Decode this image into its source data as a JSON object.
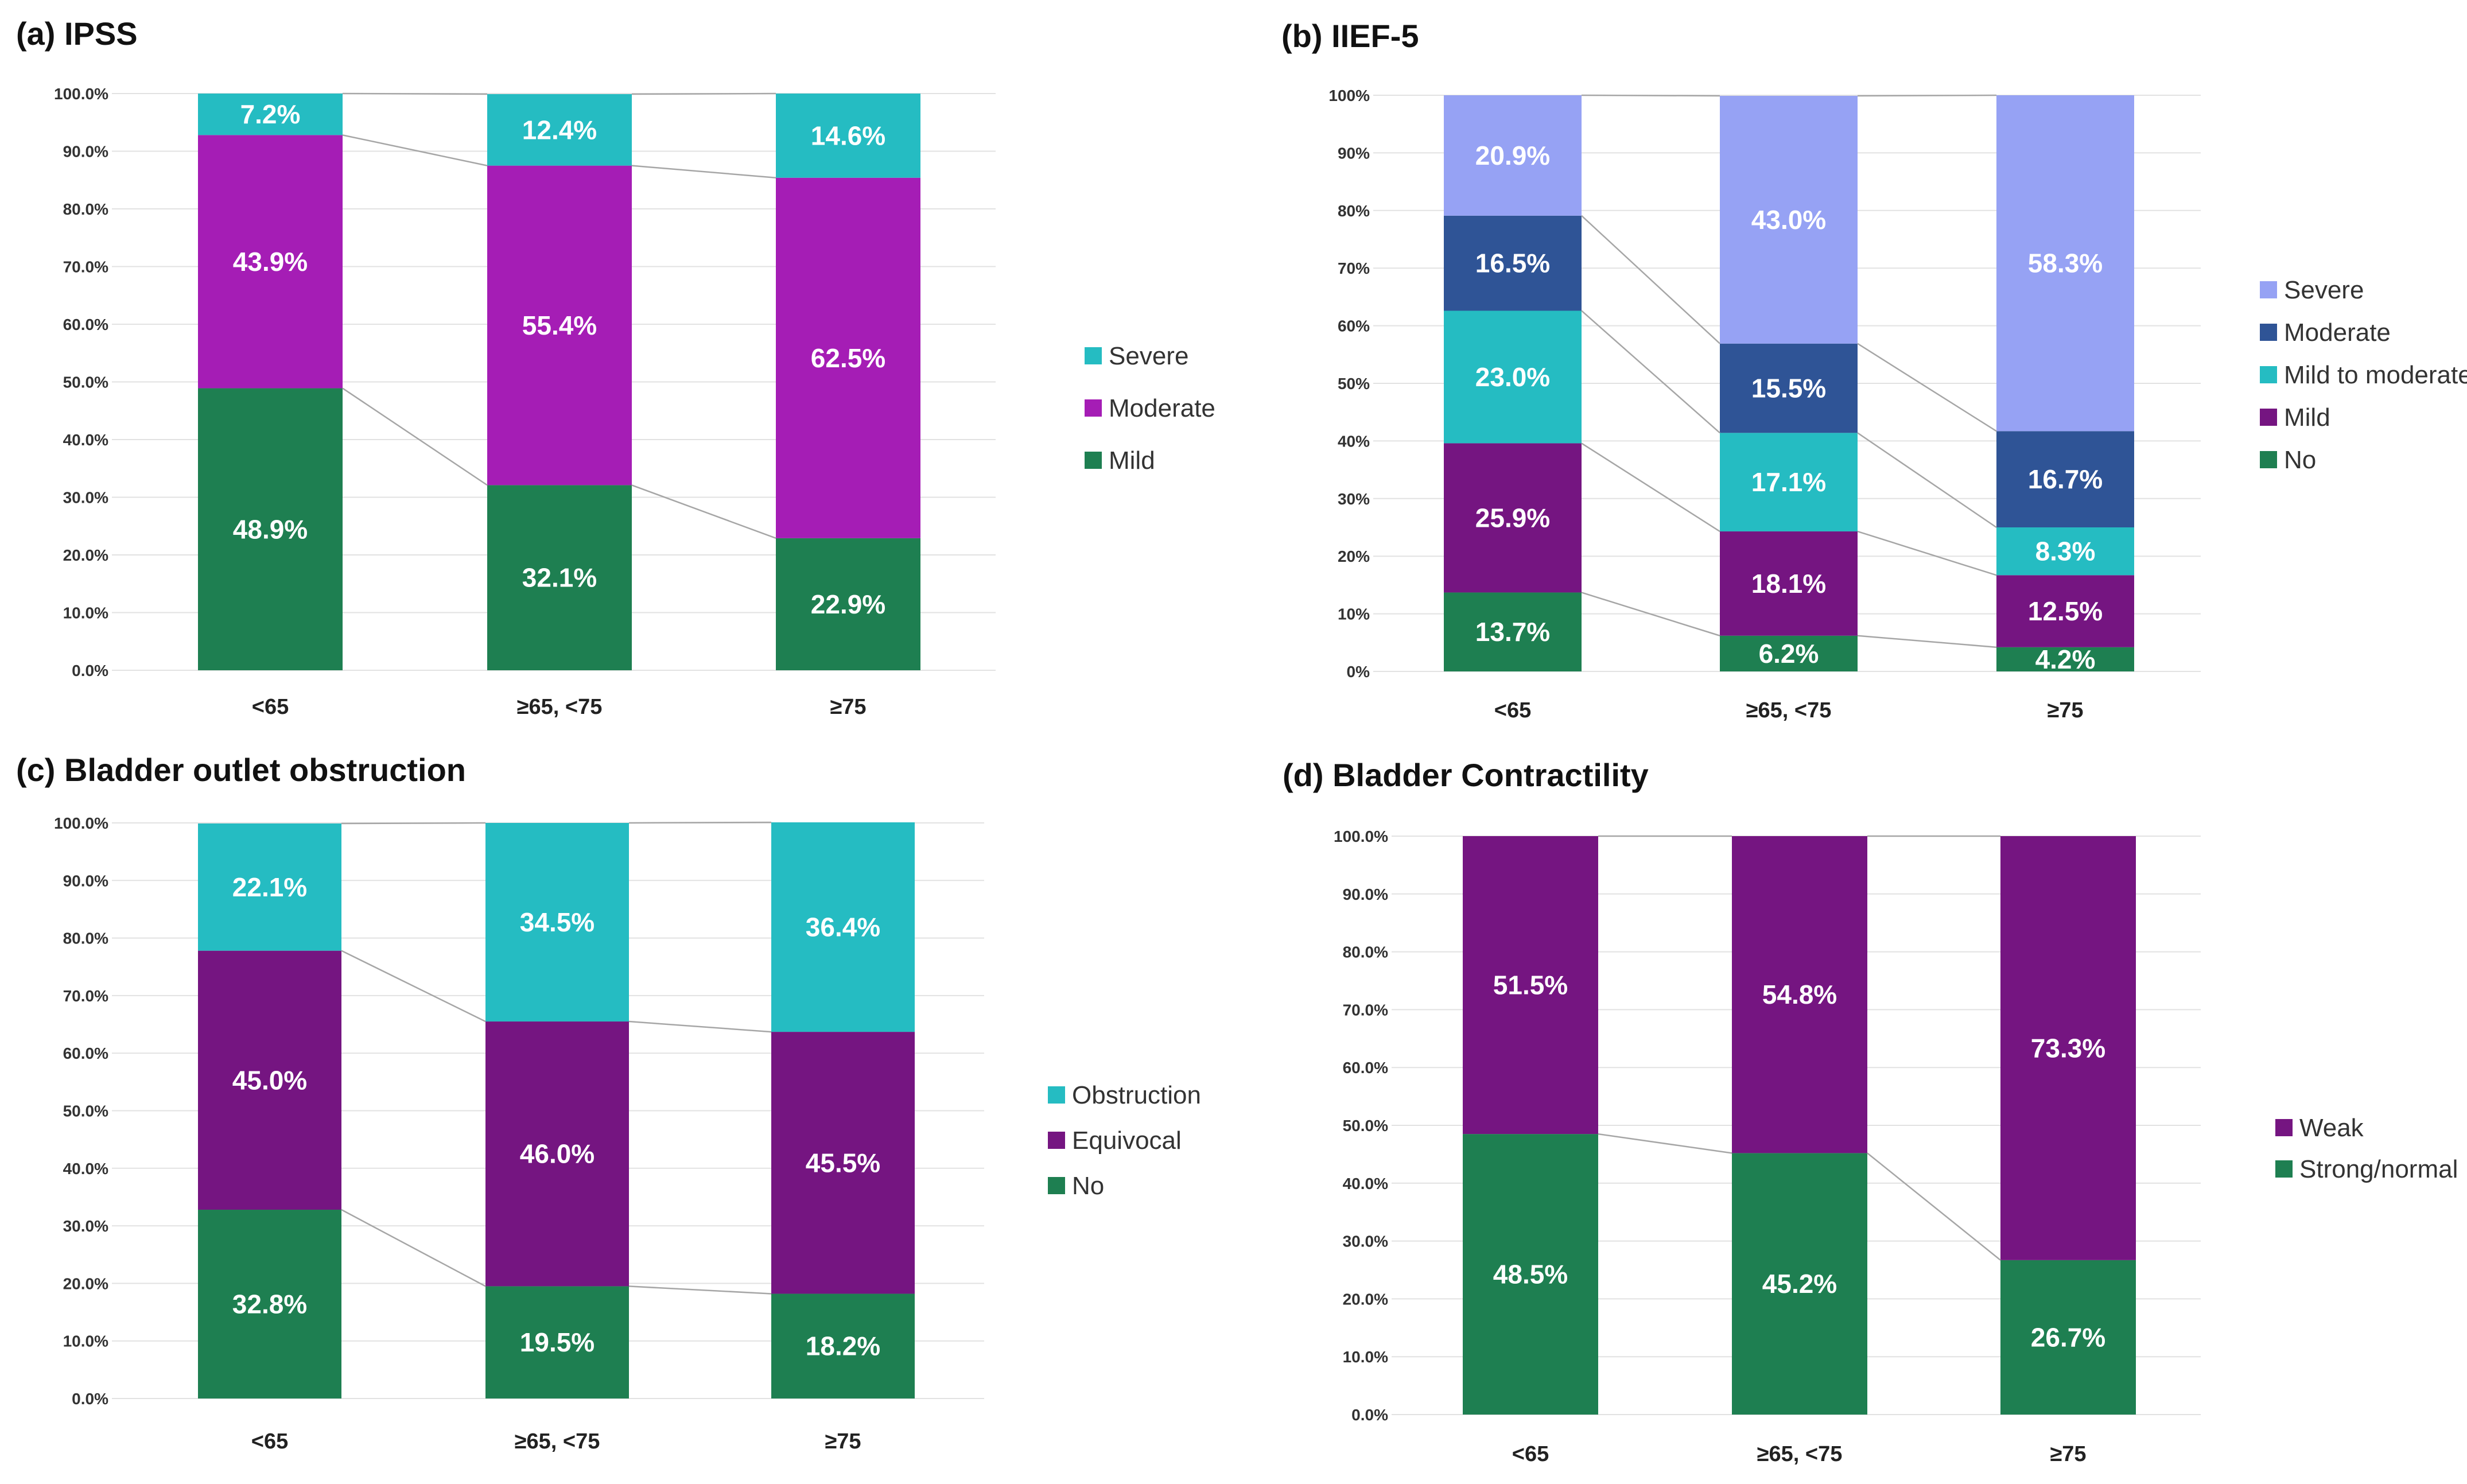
{
  "chart_data": [
    {
      "type": "bar",
      "stacked": true,
      "title": "(a) IPSS",
      "categories": [
        "<65",
        "≥65, <75",
        "≥75"
      ],
      "yticks": [
        "0.0%",
        "10.0%",
        "20.0%",
        "30.0%",
        "40.0%",
        "50.0%",
        "60.0%",
        "70.0%",
        "80.0%",
        "90.0%",
        "100.0%"
      ],
      "ylim": [
        0,
        100
      ],
      "series": [
        {
          "name": "Mild",
          "color": "#1E7F51",
          "values": [
            48.9,
            32.1,
            22.9
          ],
          "labels": [
            "48.9%",
            "32.1%",
            "22.9%"
          ]
        },
        {
          "name": "Moderate",
          "color": "#A51DB5",
          "values": [
            43.9,
            55.4,
            62.5
          ],
          "labels": [
            "43.9%",
            "55.4%",
            "62.5%"
          ]
        },
        {
          "name": "Severe",
          "color": "#25BCC2",
          "values": [
            7.2,
            12.4,
            14.6
          ],
          "labels": [
            "7.2%",
            "12.4%",
            "14.6%"
          ]
        }
      ],
      "legend": [
        {
          "name": "Severe",
          "color": "#25BCC2"
        },
        {
          "name": "Moderate",
          "color": "#A51DB5"
        },
        {
          "name": "Mild",
          "color": "#1E7F51"
        }
      ],
      "legend_position": "right"
    },
    {
      "type": "bar",
      "stacked": true,
      "title": "(b) IIEF-5",
      "categories": [
        "<65",
        "≥65, <75",
        "≥75"
      ],
      "yticks": [
        "0%",
        "10%",
        "20%",
        "30%",
        "40%",
        "50%",
        "60%",
        "70%",
        "80%",
        "90%",
        "100%"
      ],
      "ylim": [
        0,
        100
      ],
      "series": [
        {
          "name": "No",
          "color": "#1E7F51",
          "values": [
            13.7,
            6.2,
            4.2
          ],
          "labels": [
            "13.7%",
            "6.2%",
            "4.2%"
          ]
        },
        {
          "name": "Mild",
          "color": "#751581",
          "values": [
            25.9,
            18.1,
            12.5
          ],
          "labels": [
            "25.9%",
            "18.1%",
            "12.5%"
          ]
        },
        {
          "name": "Mild to moderate",
          "color": "#25BCC2",
          "values": [
            23.0,
            17.1,
            8.3
          ],
          "labels": [
            "23.0%",
            "17.1%",
            "8.3%"
          ]
        },
        {
          "name": "Moderate",
          "color": "#2F5496",
          "values": [
            16.5,
            15.5,
            16.7
          ],
          "labels": [
            "16.5%",
            "15.5%",
            "16.7%"
          ]
        },
        {
          "name": "Severe",
          "color": "#96A2F4",
          "values": [
            20.9,
            43.0,
            58.3
          ],
          "labels": [
            "20.9%",
            "43.0%",
            "58.3%"
          ]
        }
      ],
      "legend": [
        {
          "name": "Severe",
          "color": "#96A2F4"
        },
        {
          "name": "Moderate",
          "color": "#2F5496"
        },
        {
          "name": "Mild to moderate",
          "color": "#25BCC2"
        },
        {
          "name": "Mild",
          "color": "#751581"
        },
        {
          "name": "No",
          "color": "#1E7F51"
        }
      ],
      "legend_position": "right"
    },
    {
      "type": "bar",
      "stacked": true,
      "title": "(c) Bladder outlet obstruction",
      "categories": [
        "<65",
        "≥65, <75",
        "≥75"
      ],
      "yticks": [
        "0.0%",
        "10.0%",
        "20.0%",
        "30.0%",
        "40.0%",
        "50.0%",
        "60.0%",
        "70.0%",
        "80.0%",
        "90.0%",
        "100.0%"
      ],
      "ylim": [
        0,
        100
      ],
      "series": [
        {
          "name": "No",
          "color": "#1E7F51",
          "values": [
            32.8,
            19.5,
            18.2
          ],
          "labels": [
            "32.8%",
            "19.5%",
            "18.2%"
          ]
        },
        {
          "name": "Equivocal",
          "color": "#751581",
          "values": [
            45.0,
            46.0,
            45.5
          ],
          "labels": [
            "45.0%",
            "46.0%",
            "45.5%"
          ]
        },
        {
          "name": "Obstruction",
          "color": "#25BCC2",
          "values": [
            22.1,
            34.5,
            36.4
          ],
          "labels": [
            "22.1%",
            "34.5%",
            "36.4%"
          ]
        }
      ],
      "legend": [
        {
          "name": "Obstruction",
          "color": "#25BCC2"
        },
        {
          "name": "Equivocal",
          "color": "#751581"
        },
        {
          "name": "No",
          "color": "#1E7F51"
        }
      ],
      "legend_position": "right"
    },
    {
      "type": "bar",
      "stacked": true,
      "title": "(d) Bladder Contractility",
      "categories": [
        "<65",
        "≥65, <75",
        "≥75"
      ],
      "yticks": [
        "0.0%",
        "10.0%",
        "20.0%",
        "30.0%",
        "40.0%",
        "50.0%",
        "60.0%",
        "70.0%",
        "80.0%",
        "90.0%",
        "100.0%"
      ],
      "ylim": [
        0,
        100
      ],
      "series": [
        {
          "name": "Strong/normal",
          "color": "#1E7F51",
          "values": [
            48.5,
            45.2,
            26.7
          ],
          "labels": [
            "48.5%",
            "45.2%",
            "26.7%"
          ]
        },
        {
          "name": "Weak",
          "color": "#751581",
          "values": [
            51.5,
            54.8,
            73.3
          ],
          "labels": [
            "51.5%",
            "54.8%",
            "73.3%"
          ]
        }
      ],
      "legend": [
        {
          "name": "Weak",
          "color": "#751581"
        },
        {
          "name": "Strong/normal",
          "color": "#1E7F51"
        }
      ],
      "legend_position": "right"
    }
  ]
}
